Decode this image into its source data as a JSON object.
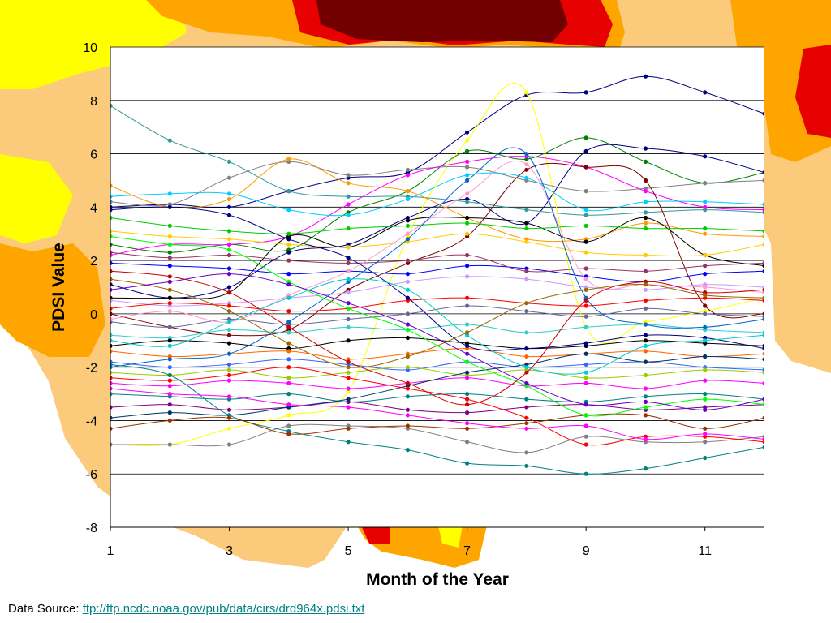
{
  "footer": {
    "label": "Data Source: ",
    "link": "ftp://ftp.ncdc.noaa.gov/pub/data/cirs/drd964x.pdsi.txt"
  },
  "background": {
    "colors": {
      "yellow": "#ffff00",
      "tan": "#fbcb7b",
      "orange": "#ffa500",
      "red": "#e60000",
      "dark_red": "#730000"
    }
  },
  "chart_data": {
    "type": "line",
    "xlabel": "Month of the Year",
    "ylabel": "PDSI Value",
    "xlim": [
      1,
      12
    ],
    "ylim": [
      -8,
      10
    ],
    "xticks": [
      "1",
      "3",
      "5",
      "7",
      "9",
      "11"
    ],
    "yticks": [
      "10",
      "8",
      "6",
      "4",
      "2",
      "0",
      "-2",
      "-4",
      "-6",
      "-8"
    ],
    "grid": "horizontal",
    "legend": "none",
    "x": [
      1,
      2,
      3,
      4,
      5,
      6,
      7,
      8,
      9,
      10,
      11,
      12
    ],
    "series": [
      {
        "color": "#000080",
        "values": [
          4.0,
          4.1,
          4.0,
          4.6,
          5.1,
          5.3,
          6.8,
          8.2,
          8.3,
          8.9,
          8.3,
          7.5
        ]
      },
      {
        "color": "#ffff00",
        "values": [
          -4.9,
          -4.9,
          -4.3,
          -3.8,
          -2.9,
          2.9,
          6.5,
          8.3,
          -0.5,
          -0.3,
          0.1,
          0.6
        ]
      },
      {
        "color": "#008000",
        "values": [
          2.6,
          2.3,
          2.6,
          2.4,
          3.8,
          4.6,
          6.1,
          5.8,
          6.6,
          5.7,
          4.9,
          5.3
        ]
      },
      {
        "color": "#000080",
        "values": [
          1.1,
          0.6,
          1.0,
          2.3,
          2.6,
          3.6,
          4.3,
          3.4,
          6.1,
          6.2,
          5.9,
          5.3
        ]
      },
      {
        "color": "#339999",
        "values": [
          7.8,
          6.5,
          5.7,
          4.6,
          4.4,
          4.4,
          4.2,
          3.9,
          3.7,
          3.8,
          3.9,
          3.8
        ]
      },
      {
        "color": "#808080",
        "values": [
          4.2,
          4.1,
          5.1,
          5.7,
          5.2,
          5.4,
          5.5,
          5.0,
          4.6,
          4.7,
          4.9,
          5.0
        ]
      },
      {
        "color": "#ff9900",
        "values": [
          4.8,
          4.0,
          4.3,
          5.8,
          4.9,
          4.6,
          3.6,
          2.8,
          2.8,
          3.4,
          3.0,
          2.9
        ]
      },
      {
        "color": "#ff00ff",
        "values": [
          2.2,
          2.6,
          2.6,
          2.9,
          4.1,
          5.2,
          5.7,
          5.9,
          5.5,
          4.6,
          4.0,
          3.9
        ]
      },
      {
        "color": "#00ccff",
        "values": [
          4.4,
          4.5,
          4.5,
          3.9,
          3.7,
          4.3,
          5.2,
          5.1,
          3.9,
          4.2,
          4.2,
          4.1
        ]
      },
      {
        "color": "#000000",
        "values": [
          0.6,
          0.6,
          0.8,
          2.9,
          2.5,
          3.5,
          3.6,
          3.4,
          2.7,
          3.6,
          2.2,
          1.8
        ]
      },
      {
        "color": "#800000",
        "values": [
          0.0,
          -0.5,
          -0.8,
          -0.6,
          0.9,
          1.9,
          2.9,
          5.4,
          5.5,
          5.0,
          0.3,
          0.0
        ]
      },
      {
        "color": "#ffcc00",
        "values": [
          3.1,
          2.9,
          2.8,
          2.6,
          2.5,
          2.7,
          3.0,
          2.7,
          2.3,
          2.2,
          2.2,
          2.6
        ]
      },
      {
        "color": "#0000ff",
        "values": [
          1.9,
          1.8,
          1.7,
          1.5,
          1.6,
          1.5,
          1.8,
          1.7,
          1.4,
          1.2,
          1.5,
          1.6
        ]
      },
      {
        "color": "#00cc00",
        "values": [
          3.6,
          3.3,
          3.1,
          3.0,
          3.2,
          3.3,
          3.4,
          3.2,
          3.3,
          3.2,
          3.2,
          3.1
        ]
      },
      {
        "color": "#993366",
        "values": [
          2.3,
          2.1,
          2.2,
          2.0,
          1.9,
          2.0,
          2.2,
          1.6,
          1.7,
          1.6,
          1.8,
          1.9
        ]
      },
      {
        "color": "#cc99ff",
        "values": [
          0.5,
          0.3,
          0.4,
          0.6,
          0.8,
          1.2,
          1.4,
          1.3,
          1.0,
          0.9,
          1.1,
          1.0
        ]
      },
      {
        "color": "#ff0000",
        "values": [
          0.2,
          0.4,
          0.3,
          0.1,
          0.2,
          0.5,
          0.6,
          0.4,
          0.3,
          0.5,
          0.6,
          0.5
        ]
      },
      {
        "color": "#666699",
        "values": [
          -0.3,
          -0.5,
          -0.2,
          -0.4,
          -0.2,
          0.0,
          0.3,
          0.1,
          -0.1,
          0.2,
          0.0,
          -0.1
        ]
      },
      {
        "color": "#33cccc",
        "values": [
          -0.8,
          -0.9,
          -0.6,
          -0.7,
          -0.5,
          -0.6,
          -0.4,
          -0.7,
          -0.5,
          -0.4,
          -0.6,
          -0.7
        ]
      },
      {
        "color": "#000000",
        "values": [
          -1.2,
          -1.0,
          -1.1,
          -1.3,
          -1.0,
          -0.9,
          -1.1,
          -1.3,
          -1.2,
          -1.0,
          -1.1,
          -1.2
        ]
      },
      {
        "color": "#ff6600",
        "values": [
          -1.4,
          -1.6,
          -1.5,
          -1.4,
          -1.7,
          -1.5,
          -1.3,
          -1.6,
          -1.5,
          -1.4,
          -1.6,
          -1.5
        ]
      },
      {
        "color": "#3366ff",
        "values": [
          -1.8,
          -2.0,
          -1.9,
          -1.7,
          -1.9,
          -2.1,
          -1.8,
          -2.0,
          -1.9,
          -1.8,
          -2.0,
          -2.1
        ]
      },
      {
        "color": "#99cc00",
        "values": [
          -2.2,
          -2.3,
          -2.1,
          -2.4,
          -2.2,
          -2.0,
          -2.3,
          -2.1,
          -2.4,
          -2.3,
          -2.1,
          -2.2
        ]
      },
      {
        "color": "#ff00ff",
        "values": [
          -2.6,
          -2.7,
          -2.5,
          -2.6,
          -2.8,
          -2.6,
          -2.4,
          -2.7,
          -2.6,
          -2.8,
          -2.5,
          -2.6
        ]
      },
      {
        "color": "#008080",
        "values": [
          -3.0,
          -3.1,
          -3.2,
          -3.0,
          -3.3,
          -3.1,
          -3.0,
          -3.2,
          -3.3,
          -3.1,
          -3.0,
          -3.2
        ]
      },
      {
        "color": "#800080",
        "values": [
          -3.5,
          -3.4,
          -3.6,
          -3.5,
          -3.3,
          -3.6,
          -3.7,
          -3.5,
          -3.4,
          -3.6,
          -3.5,
          -3.4
        ]
      },
      {
        "color": "#003366",
        "values": [
          -3.9,
          -3.7,
          -3.8,
          -3.5,
          -3.2,
          -2.7,
          -2.2,
          -1.9,
          -1.5,
          -1.8,
          -1.6,
          -1.7
        ]
      },
      {
        "color": "#808080",
        "values": [
          -4.9,
          -4.9,
          -4.9,
          -4.2,
          -4.2,
          -4.3,
          -4.8,
          -5.2,
          -4.6,
          -4.8,
          -4.8,
          -4.6
        ]
      },
      {
        "color": "#008080",
        "values": [
          -1.9,
          -2.3,
          -3.8,
          -4.4,
          -4.8,
          -5.1,
          -5.6,
          -5.7,
          -6.0,
          -5.8,
          -5.4,
          -5.0
        ]
      },
      {
        "color": "#993300",
        "values": [
          -4.3,
          -4.0,
          -3.9,
          -4.5,
          -4.3,
          -4.2,
          -4.3,
          -4.1,
          -3.8,
          -3.8,
          -4.3,
          -3.9
        ]
      },
      {
        "color": "#ff0000",
        "values": [
          -2.4,
          -2.5,
          -2.3,
          -2.0,
          -2.4,
          -2.8,
          -3.2,
          -3.9,
          -4.9,
          -4.6,
          -4.6,
          -4.8
        ]
      },
      {
        "color": "#ff00ff",
        "values": [
          -2.8,
          -3.0,
          -3.1,
          -3.4,
          -3.5,
          -3.8,
          -4.1,
          -4.3,
          -4.2,
          -4.7,
          -4.5,
          -4.7
        ]
      },
      {
        "color": "#000080",
        "values": [
          3.9,
          4.0,
          3.7,
          2.8,
          2.1,
          0.6,
          -1.2,
          -1.3,
          -1.1,
          -0.8,
          -0.9,
          -1.3
        ]
      },
      {
        "color": "#00ff00",
        "values": [
          2.9,
          2.6,
          2.4,
          1.2,
          0.2,
          -0.6,
          -1.8,
          -2.7,
          -3.8,
          -3.5,
          -3.2,
          -3.4
        ]
      },
      {
        "color": "#ff99cc",
        "values": [
          -0.2,
          0.1,
          -0.3,
          0.7,
          1.6,
          3.0,
          4.5,
          5.6,
          1.3,
          1.1,
          1.0,
          0.8
        ]
      },
      {
        "color": "#0066cc",
        "values": [
          -2.0,
          -1.7,
          -1.5,
          -0.3,
          1.2,
          2.8,
          5.0,
          6.0,
          0.6,
          -0.4,
          -0.5,
          -0.2
        ]
      },
      {
        "color": "#cc0000",
        "values": [
          1.6,
          1.4,
          0.8,
          -0.5,
          -1.8,
          -2.6,
          -3.4,
          -2.2,
          0.5,
          1.2,
          0.8,
          0.9
        ]
      },
      {
        "color": "#00cccc",
        "values": [
          -1.0,
          -1.2,
          -0.3,
          0.6,
          1.3,
          0.9,
          -0.8,
          -2.0,
          -2.2,
          -1.2,
          -1.0,
          -0.8
        ]
      },
      {
        "color": "#996600",
        "values": [
          1.3,
          0.9,
          0.1,
          -1.1,
          -2.0,
          -1.6,
          -0.7,
          0.4,
          0.9,
          1.1,
          0.7,
          0.6
        ]
      },
      {
        "color": "#6600cc",
        "values": [
          0.9,
          1.2,
          1.5,
          1.1,
          0.4,
          -0.4,
          -1.5,
          -2.6,
          -3.4,
          -3.3,
          -3.6,
          -3.2
        ]
      }
    ]
  }
}
